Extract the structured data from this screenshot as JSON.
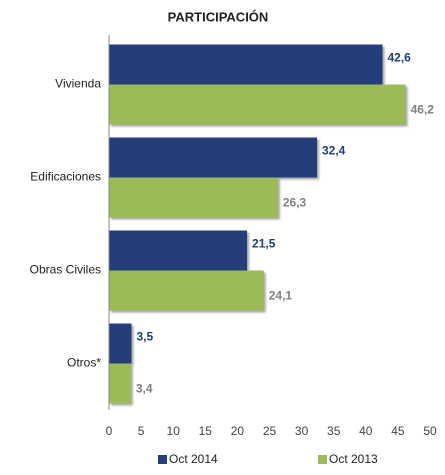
{
  "chart_data": {
    "type": "hbar",
    "title": "PARTICIPACIÓN",
    "categories": [
      "Vivienda",
      "Edificaciones",
      "Obras Civiles",
      "Otros*"
    ],
    "series": [
      {
        "name": "Oct 2014",
        "color": "#233e79",
        "label_color": "#1f3d7a",
        "values": [
          42.6,
          32.4,
          21.5,
          3.5
        ],
        "value_labels": [
          "42,6",
          "32,4",
          "21,5",
          "3,5"
        ]
      },
      {
        "name": "Oct 2013",
        "color": "#9bbb59",
        "label_color": "#7f7f7f",
        "values": [
          46.2,
          26.3,
          24.1,
          3.4
        ],
        "value_labels": [
          "46,2",
          "26,3",
          "24,1",
          "3,4"
        ]
      }
    ],
    "xlim": [
      0,
      50
    ],
    "xticks": [
      0,
      5,
      10,
      15,
      20,
      25,
      30,
      35,
      40,
      45,
      50
    ],
    "grid": false,
    "legend": "bottom"
  }
}
